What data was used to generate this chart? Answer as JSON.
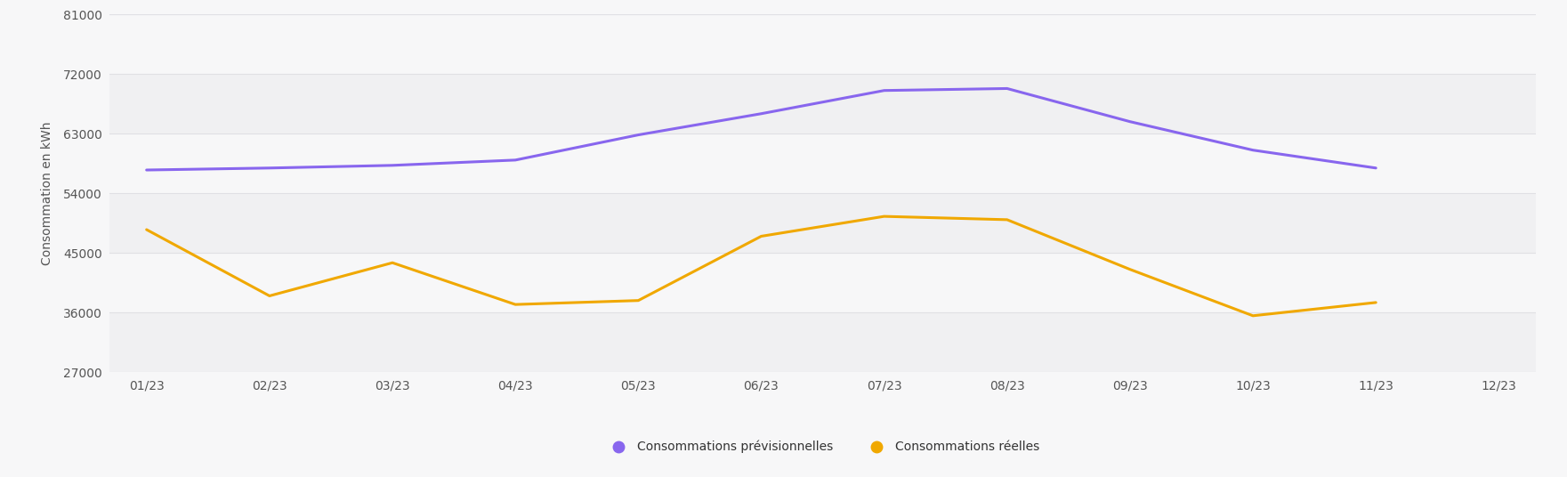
{
  "x_labels": [
    "01/23",
    "02/23",
    "03/23",
    "04/23",
    "05/23",
    "06/23",
    "07/23",
    "08/23",
    "09/23",
    "10/23",
    "11/23",
    "12/23"
  ],
  "previsionnel": [
    57500,
    57800,
    58200,
    59000,
    62800,
    66000,
    69500,
    69800,
    64800,
    60500,
    57800,
    null
  ],
  "reelles": [
    48500,
    38500,
    43500,
    37200,
    37800,
    47500,
    50500,
    50000,
    42500,
    35500,
    37500,
    null
  ],
  "color_prev": "#8866ee",
  "color_reel": "#f0a800",
  "ylabel": "Consommation en kWh",
  "yticks": [
    27000,
    36000,
    45000,
    54000,
    63000,
    72000,
    81000
  ],
  "background_color": "#f7f7f8",
  "band_colors": [
    "#f0f0f2",
    "#f7f7f8"
  ],
  "grid_color": "#e0e0e4",
  "legend_label_prev": "Consommations prévisionnelles",
  "legend_label_reel": "Consommations réelles",
  "line_width": 2.2,
  "tick_color": "#555555",
  "tick_fontsize": 10,
  "ylabel_fontsize": 10
}
